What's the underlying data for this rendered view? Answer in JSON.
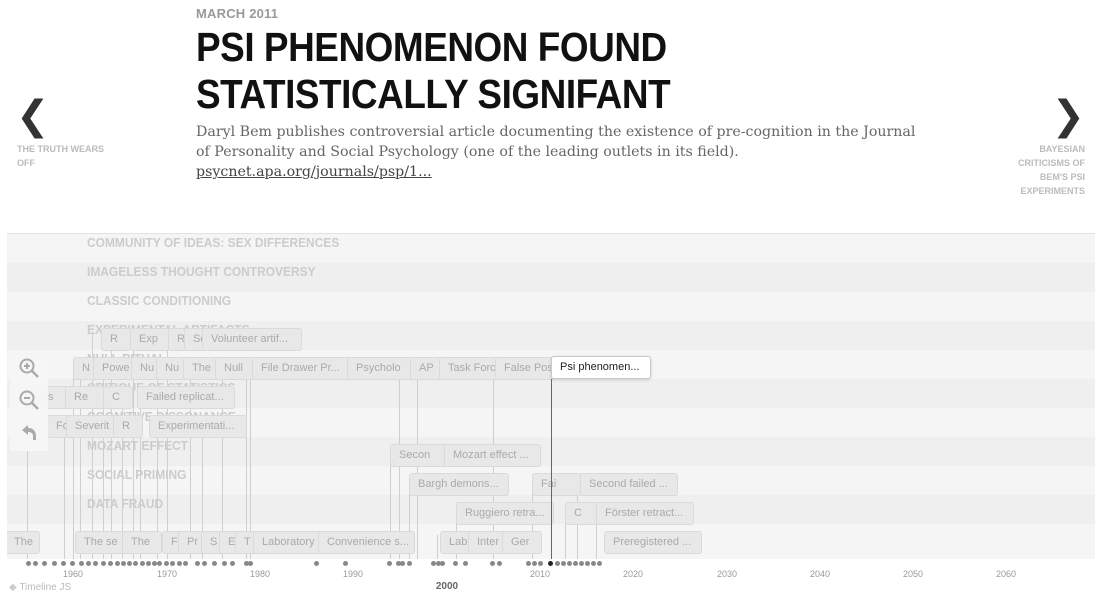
{
  "slide": {
    "date": "MARCH 2011",
    "headline": "PSI PHENOMENON FOUND STATISTICALLY SIGNIFANT",
    "description": "Daryl Bem publishes controversial article documenting the existence of pre-cognition in the Journal of Personality and Social Psychology (one of the leading outlets in its field).",
    "link_text": "psycnet.apa.org/journals/psp/1..."
  },
  "nav": {
    "prev_label": "THE TRUTH WEARS OFF",
    "next_label": "BAYESIAN CRITICISMS OF BEM'S PSI EXPERIMENTS",
    "prev_icon": "chevron-left-icon",
    "next_icon": "chevron-right-icon"
  },
  "groups": [
    "COMMUNITY OF IDEAS: SEX DIFFERENCES",
    "IMAGELESS THOUGHT CONTROVERSY",
    "CLASSIC CONDITIONING",
    "EXPERIMENTAL ARTIFACTS",
    "NULL RITUAL",
    "CRITIQUE OF STATISTICS",
    "COGNITIVE DISSONANCE",
    "MOZART EFFECT",
    "SOCIAL PRIMING",
    "DATA FRAUD"
  ],
  "markers": [
    {
      "row": 3,
      "label": "R"
    },
    {
      "row": 3,
      "label": "Exp"
    },
    {
      "row": 3,
      "label": "R"
    },
    {
      "row": 3,
      "label": "Se"
    },
    {
      "row": 3,
      "label": "Volunteer artif..."
    },
    {
      "row": 4,
      "label": "N"
    },
    {
      "row": 4,
      "label": "Powe"
    },
    {
      "row": 4,
      "label": "Nu"
    },
    {
      "row": 4,
      "label": "Nu"
    },
    {
      "row": 4,
      "label": "The"
    },
    {
      "row": 4,
      "label": "Null"
    },
    {
      "row": 4,
      "label": "File Drawer Pr..."
    },
    {
      "row": 4,
      "label": "Psycholo"
    },
    {
      "row": 4,
      "label": "AP"
    },
    {
      "row": 4,
      "label": "Task Forc"
    },
    {
      "row": 4,
      "label": "False Posi"
    },
    {
      "row": 5,
      "label": "lass"
    },
    {
      "row": 5,
      "label": "Re"
    },
    {
      "row": 5,
      "label": "C"
    },
    {
      "row": 5,
      "label": "Failed replicat..."
    },
    {
      "row": 6,
      "label": "Fo"
    },
    {
      "row": 6,
      "label": "Severit"
    },
    {
      "row": 6,
      "label": "R"
    },
    {
      "row": 6,
      "label": "Experimentati..."
    },
    {
      "row": 7,
      "label": "Secon"
    },
    {
      "row": 7,
      "label": "Mozart effect ..."
    },
    {
      "row": 8,
      "label": "Bargh demons..."
    },
    {
      "row": 8,
      "label": "Fai"
    },
    {
      "row": 8,
      "label": "Second failed ..."
    },
    {
      "row": 9,
      "label": "Ruggiero retra..."
    },
    {
      "row": 9,
      "label": "C"
    },
    {
      "row": 9,
      "label": "Förster retract..."
    },
    {
      "row": 10,
      "label": "The"
    },
    {
      "row": 10,
      "label": "The se"
    },
    {
      "row": 10,
      "label": "The"
    },
    {
      "row": 10,
      "label": "F"
    },
    {
      "row": 10,
      "label": "Pr"
    },
    {
      "row": 10,
      "label": "S"
    },
    {
      "row": 10,
      "label": "E"
    },
    {
      "row": 10,
      "label": "T"
    },
    {
      "row": 10,
      "label": "Laboratory"
    },
    {
      "row": 10,
      "label": "Convenience s..."
    },
    {
      "row": 10,
      "label": "Lab"
    },
    {
      "row": 10,
      "label": "Inter"
    },
    {
      "row": 10,
      "label": "Ger"
    },
    {
      "row": 10,
      "label": "Preregistered ..."
    }
  ],
  "active_marker": {
    "label": "Psi phenomen..."
  },
  "axis": {
    "ticks": [
      "1960",
      "1970",
      "1980",
      "1990",
      "2000",
      "2010",
      "2020",
      "2030",
      "2040",
      "2050",
      "2060"
    ],
    "major_tick": "2000"
  },
  "controls": {
    "zoom_in_icon": "zoom-in-icon",
    "zoom_out_icon": "zoom-out-icon",
    "back_icon": "back-icon"
  },
  "credit": "Timeline JS"
}
